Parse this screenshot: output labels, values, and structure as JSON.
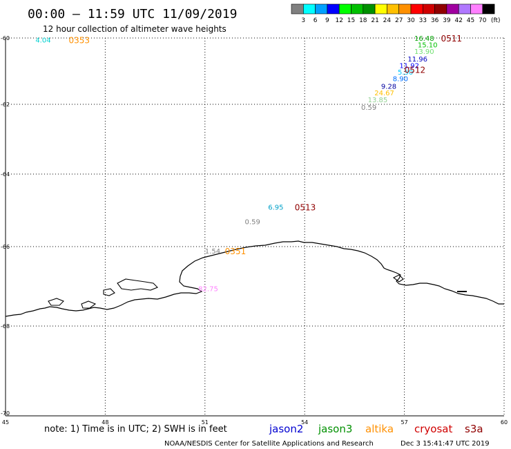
{
  "header": {
    "title": "00:00 – 11:59 UTC 11/09/2019",
    "subtitle": "12 hour collection of altimeter wave heights"
  },
  "legend": {
    "unit": "(ft)",
    "bins": [
      {
        "label": "3",
        "color": "#808080"
      },
      {
        "label": "6",
        "color": "#00ffff"
      },
      {
        "label": "9",
        "color": "#00a0ff"
      },
      {
        "label": "12",
        "color": "#0000ff"
      },
      {
        "label": "15",
        "color": "#00ff00"
      },
      {
        "label": "18",
        "color": "#00c000"
      },
      {
        "label": "21",
        "color": "#009000"
      },
      {
        "label": "24",
        "color": "#ffff00"
      },
      {
        "label": "27",
        "color": "#ffc000"
      },
      {
        "label": "30",
        "color": "#ff9000"
      },
      {
        "label": "33",
        "color": "#ff0000"
      },
      {
        "label": "36",
        "color": "#d00000"
      },
      {
        "label": "39",
        "color": "#900000"
      },
      {
        "label": "42",
        "color": "#a000a0"
      },
      {
        "label": "45",
        "color": "#b078ff"
      },
      {
        "label": "70",
        "color": "#ff80ff"
      },
      {
        "label": "",
        "color": "#000000"
      }
    ]
  },
  "axes": {
    "lon_ticks": [
      "45",
      "48",
      "51",
      "54",
      "57",
      "60"
    ],
    "lat_ticks": [
      "-60",
      "-62",
      "-64",
      "-66",
      "-68",
      "-70"
    ],
    "lon_range": [
      45,
      60
    ],
    "lat_range": [
      -60,
      -70
    ]
  },
  "observations": [
    {
      "value": "4.04",
      "lon": 45.9,
      "lat": -60.05,
      "color": "#00d0d0"
    },
    {
      "value": "16.48",
      "lon": 57.3,
      "lat": -60.0,
      "color": "#00a000"
    },
    {
      "value": "15.10",
      "lon": 57.4,
      "lat": -60.2,
      "color": "#00c000"
    },
    {
      "value": "13.90",
      "lon": 57.3,
      "lat": -60.4,
      "color": "#70e070"
    },
    {
      "value": "11.96",
      "lon": 57.1,
      "lat": -60.62,
      "color": "#0000c0"
    },
    {
      "value": "11.92",
      "lon": 56.85,
      "lat": -60.82,
      "color": "#0000ff"
    },
    {
      "value": "5.50",
      "lon": 56.8,
      "lat": -61.02,
      "color": "#00c8ff"
    },
    {
      "value": "8.90",
      "lon": 56.65,
      "lat": -61.22,
      "color": "#0070ff"
    },
    {
      "value": "9.28",
      "lon": 56.3,
      "lat": -61.45,
      "color": "#0000a0"
    },
    {
      "value": "24.67",
      "lon": 56.1,
      "lat": -61.65,
      "color": "#ffc000"
    },
    {
      "value": "13.85",
      "lon": 55.9,
      "lat": -61.85,
      "color": "#90d090"
    },
    {
      "value": "0.59",
      "lon": 55.7,
      "lat": -62.08,
      "color": "#808080"
    },
    {
      "value": "6.95",
      "lon": 52.9,
      "lat": -64.9,
      "color": "#00a0c8"
    },
    {
      "value": "0.59",
      "lon": 52.2,
      "lat": -65.3,
      "color": "#808080"
    },
    {
      "value": "1.54",
      "lon": 51.0,
      "lat": -66.1,
      "color": "#808080"
    },
    {
      "value": "82.75",
      "lon": 50.8,
      "lat": -67.05,
      "color": "#ff80ff"
    }
  ],
  "time_labels": [
    {
      "text": "0353",
      "lon": 46.9,
      "lat": -60.05,
      "color": "#ff9000"
    },
    {
      "text": "0511",
      "lon": 58.1,
      "lat": -60.0,
      "color": "#900000"
    },
    {
      "text": "0512",
      "lon": 57.0,
      "lat": -60.95,
      "color": "#900000"
    },
    {
      "text": "0513",
      "lon": 53.7,
      "lat": -64.9,
      "color": "#900000"
    },
    {
      "text": "0351",
      "lon": 51.6,
      "lat": -66.1,
      "color": "#ff9000"
    }
  ],
  "footer": {
    "note": "note: 1) Time is in UTC; 2) SWH is in feet",
    "sats": [
      {
        "name": "jason2",
        "color": "#0000d0"
      },
      {
        "name": "jason3",
        "color": "#009000"
      },
      {
        "name": "altika",
        "color": "#ff9000"
      },
      {
        "name": "cryosat",
        "color": "#d00000"
      },
      {
        "name": "s3a",
        "color": "#900000"
      }
    ],
    "credit": "NOAA/NESDIS Center for Satellite Applications and Research",
    "timestamp": "Dec  3 15:41:47 UTC 2019"
  }
}
